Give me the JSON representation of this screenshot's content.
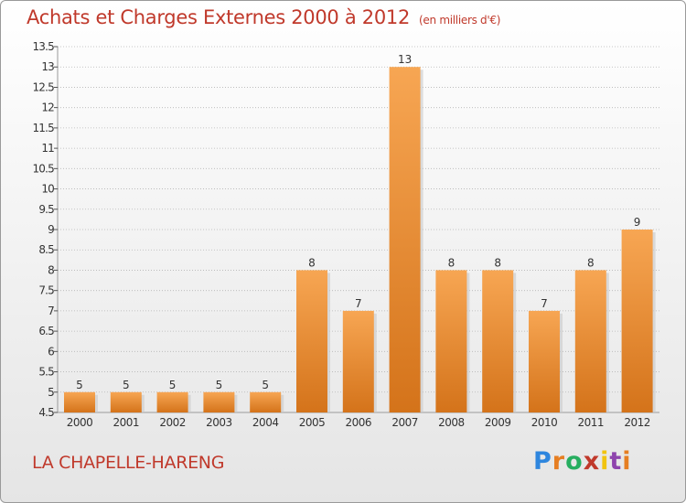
{
  "header": {
    "title": "Achats et Charges Externes 2000 à 2012",
    "unit": "(en milliers d'€)"
  },
  "footer": {
    "place": "LA CHAPELLE-HARENG",
    "logo_letters": [
      "P",
      "r",
      "o",
      "x",
      "i",
      "t",
      "i"
    ],
    "logo_colors": [
      "#2e86de",
      "#e67e22",
      "#27ae60",
      "#c0392b",
      "#f1c40f",
      "#8e44ad",
      "#e67e22"
    ]
  },
  "colors": {
    "bar_top": "#f7a653",
    "bar_bottom": "#d4731a",
    "title": "#c0392b",
    "grid": "#b5b5b5"
  },
  "chart_data": {
    "type": "bar",
    "title": "Achats et Charges Externes 2000 à 2012",
    "subtitle": "(en milliers d'€)",
    "categories": [
      "2000",
      "2001",
      "2002",
      "2003",
      "2004",
      "2005",
      "2006",
      "2007",
      "2008",
      "2009",
      "2010",
      "2011",
      "2012"
    ],
    "values": [
      5,
      5,
      5,
      5,
      5,
      8,
      7,
      13,
      8,
      8,
      7,
      8,
      9
    ],
    "data_labels": [
      "5",
      "5",
      "5",
      "5",
      "5",
      "8",
      "7",
      "13",
      "8",
      "8",
      "7",
      "8",
      "9"
    ],
    "ylim": [
      4.5,
      13.5
    ],
    "yticks": [
      4.5,
      5,
      5.5,
      6,
      6.5,
      7,
      7.5,
      8,
      8.5,
      9,
      9.5,
      10,
      10.5,
      11,
      11.5,
      12,
      12.5,
      13,
      13.5
    ],
    "ytick_labels": [
      "4.5",
      "5",
      "5.5",
      "6",
      "6.5",
      "7",
      "7.5",
      "8",
      "8.5",
      "9",
      "9.5",
      "10",
      "10.5",
      "11",
      "11.5",
      "12",
      "12.5",
      "13",
      "13.5"
    ],
    "grid": true,
    "xlabel": "",
    "ylabel": ""
  }
}
